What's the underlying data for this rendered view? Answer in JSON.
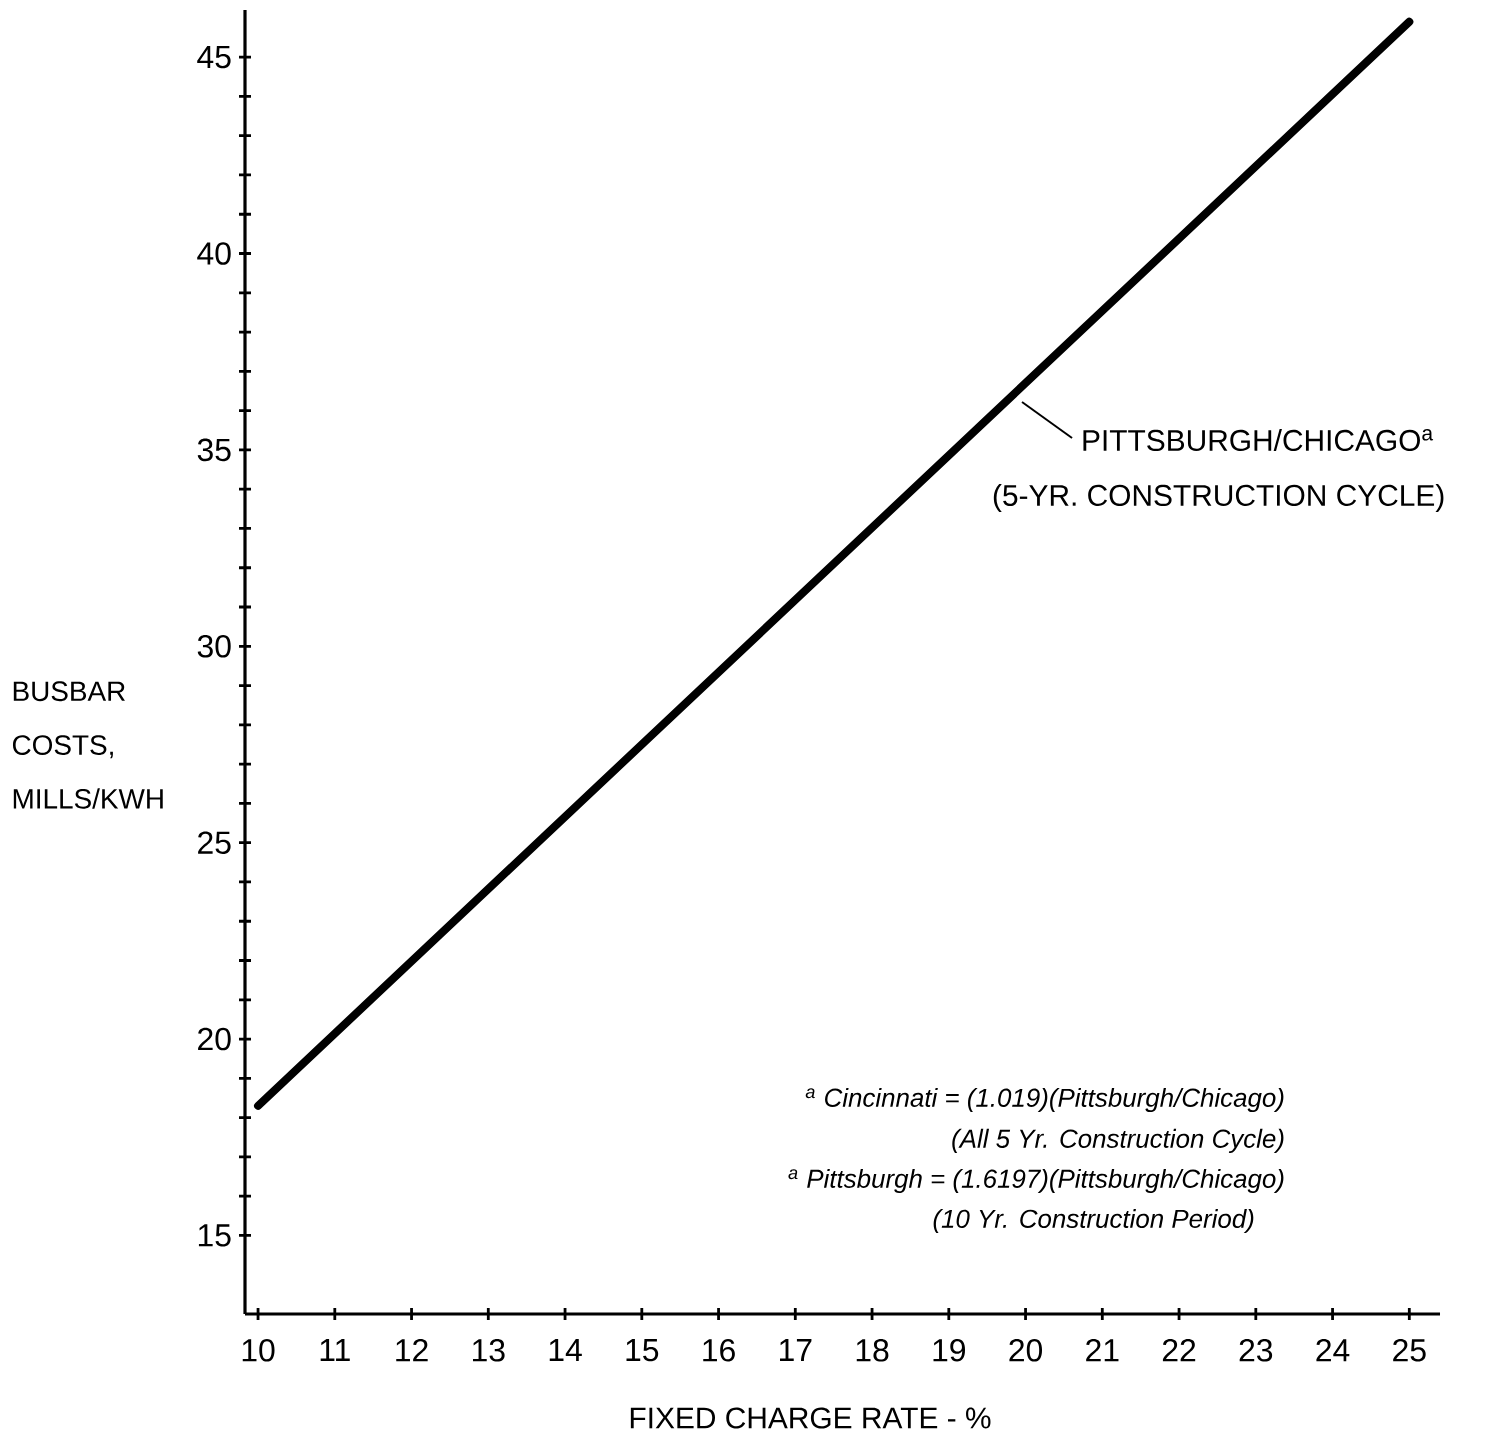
{
  "chart_data": {
    "type": "line",
    "xlabel": "FIXED CHARGE RATE - %",
    "ylabel": "BUSBAR COSTS, MILLS/KWH",
    "x": [
      10,
      25
    ],
    "series": [
      {
        "name": "PITTSBURGH/CHICAGO$^{a}$",
        "color": "#000000",
        "values": [
          18.3,
          45.9
        ]
      }
    ],
    "annotations": [
      "(5-YR. CONSTRUCTION CYCLE)",
      "$^{a}$ Cincinnati = (1.019)(Pittsburgh/Chicago)",
      "(All 5 Yr. Construction Cycle)",
      "$^{a}$ Pittsburgh = (1.6197)(Pittsburgh/Chicago)",
      "(10 Yr. Construction Period)"
    ],
    "xlim": [
      9.83,
      25.4
    ],
    "ylim": [
      13,
      46.2
    ],
    "xticks": [
      10,
      11,
      12,
      13,
      14,
      15,
      16,
      17,
      18,
      19,
      20,
      21,
      22,
      23,
      24,
      25
    ],
    "yticks": [
      15,
      {
        "value": 16,
        "label": null
      },
      {
        "value": 17,
        "label": null
      },
      {
        "value": 18,
        "label": null
      },
      {
        "value": 19,
        "label": null
      },
      20,
      {
        "value": 21,
        "label": null
      },
      {
        "value": 22,
        "label": null
      },
      {
        "value": 23,
        "label": null
      },
      {
        "value": 24,
        "label": null
      },
      25,
      {
        "value": 26,
        "label": null
      },
      {
        "value": 27,
        "label": null
      },
      {
        "value": 28,
        "label": null
      },
      {
        "value": 29,
        "label": null
      },
      30,
      {
        "value": 31,
        "label": null
      },
      {
        "value": 32,
        "label": null
      },
      {
        "value": 33,
        "label": null
      },
      {
        "value": 34,
        "label": null
      },
      35,
      {
        "value": 36,
        "label": null
      },
      {
        "value": 37,
        "label": null
      },
      {
        "value": 38,
        "label": null
      },
      {
        "value": 39,
        "label": null
      },
      40,
      {
        "value": 41,
        "label": null
      },
      {
        "value": 42,
        "label": null
      },
      {
        "value": 43,
        "label": null
      },
      {
        "value": 44,
        "label": null
      },
      45
    ]
  }
}
